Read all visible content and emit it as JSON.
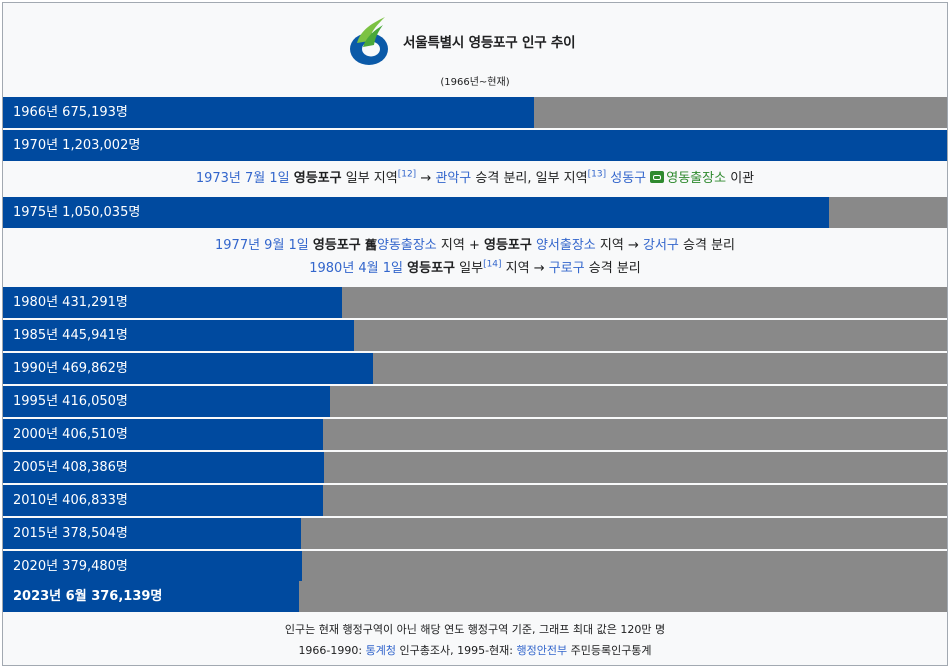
{
  "header": {
    "title": "서울특별시 영등포구 인구 추이",
    "subtitle": "(1966년~현재)"
  },
  "colors": {
    "bar": "#004a9f",
    "track": "#898989",
    "link": "#3366cc",
    "background": "#f8f9fa"
  },
  "chart_data": {
    "type": "bar",
    "orientation": "horizontal",
    "title": "서울특별시 영등포구 인구 추이",
    "subtitle": "(1966년~현재)",
    "max_value": 1200000,
    "categories": [
      "1966년",
      "1970년",
      "1975년",
      "1980년",
      "1985년",
      "1990년",
      "1995년",
      "2000년",
      "2005년",
      "2010년",
      "2015년",
      "2020년",
      "2023년 6월"
    ],
    "values": [
      675193,
      1203002,
      1050035,
      431291,
      445941,
      469862,
      416050,
      406510,
      408386,
      406833,
      378504,
      379480,
      376139
    ],
    "labels": [
      "1966년 675,193명",
      "1970년 1,203,002명",
      "1975년 1,050,035명",
      "1980년 431,291명",
      "1985년 445,941명",
      "1990년 469,862명",
      "1995년 416,050명",
      "2000년 406,510명",
      "2005년 408,386명",
      "2010년 406,833명",
      "2015년 378,504명",
      "2020년 379,480명",
      "2023년 6월 376,139명"
    ]
  },
  "notes": {
    "n1973": {
      "date": "1973년 7월 1일",
      "district": "영등포구",
      "t1": " 일부 지역",
      "ref1": "[12]",
      "t2": " → ",
      "link1": "관악구",
      "t3": " 승격 분리, 일부 지역",
      "ref2": "[13]",
      "t4": " ",
      "link2": "성동구",
      "t5": " ",
      "link3": "영동출장소",
      "t6": " 이관"
    },
    "n1977": {
      "date": "1977년 9월 1일",
      "district1": "영등포구",
      "hanja": " 舊",
      "link1": "양동출장소",
      "t1": " 지역 + ",
      "district2": "영등포구",
      "t2": " ",
      "link2": "양서출장소",
      "t3": " 지역 → ",
      "link3": "강서구",
      "t4": " 승격 분리"
    },
    "n1980": {
      "date": "1980년 4월 1일",
      "district": "영등포구",
      "t1": " 일부",
      "ref1": "[14]",
      "t2": " 지역 → ",
      "link1": "구로구",
      "t3": " 승격 분리"
    }
  },
  "footer": {
    "line1": "인구는 현재 행정구역이 아닌 해당 연도 행정구역 기준, 그래프 최대 값은 120만 명",
    "line2a": "1966-1990: ",
    "line2_link1": "통계청",
    "line2b": " 인구총조사, 1995-현재: ",
    "line2_link2": "행정안전부",
    "line2c": " 주민등록인구통계"
  }
}
